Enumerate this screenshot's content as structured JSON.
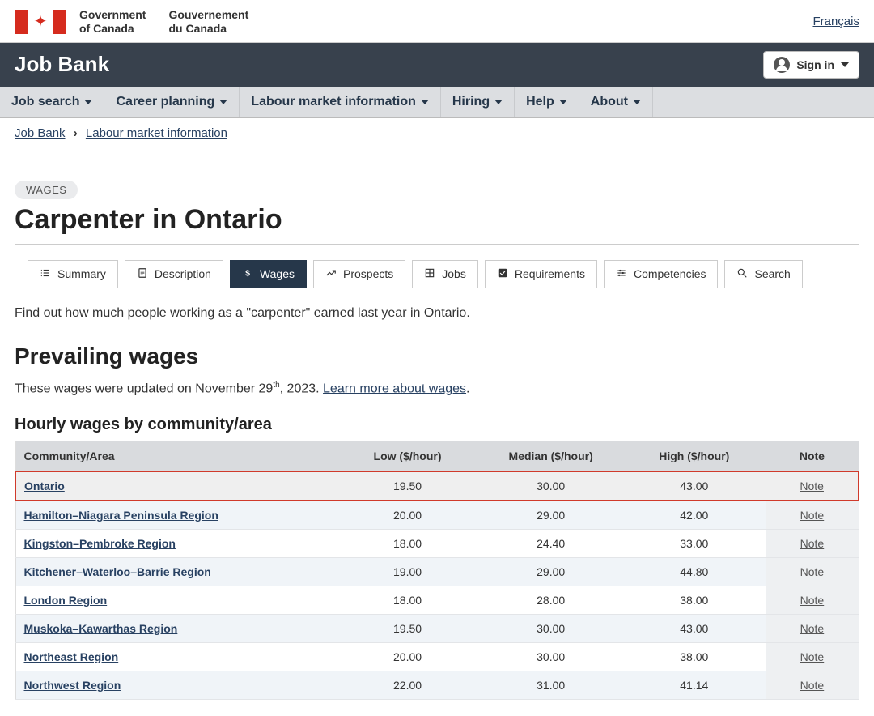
{
  "header": {
    "gov_en_line1": "Government",
    "gov_en_line2": "of Canada",
    "gov_fr_line1": "Gouvernement",
    "gov_fr_line2": "du Canada",
    "lang_link": "Français"
  },
  "appbar": {
    "title": "Job Bank",
    "signin": "Sign in"
  },
  "nav": {
    "items": [
      {
        "label": "Job search"
      },
      {
        "label": "Career planning"
      },
      {
        "label": "Labour market information"
      },
      {
        "label": "Hiring"
      },
      {
        "label": "Help"
      },
      {
        "label": "About"
      }
    ]
  },
  "breadcrumb": {
    "items": [
      "Job Bank",
      "Labour market information"
    ]
  },
  "page": {
    "badge": "WAGES",
    "title": "Carpenter in Ontario",
    "tabs": [
      {
        "label": "Summary",
        "icon": "list"
      },
      {
        "label": "Description",
        "icon": "doc"
      },
      {
        "label": "Wages",
        "icon": "dollar",
        "active": true
      },
      {
        "label": "Prospects",
        "icon": "chart"
      },
      {
        "label": "Jobs",
        "icon": "grid"
      },
      {
        "label": "Requirements",
        "icon": "check"
      },
      {
        "label": "Competencies",
        "icon": "sliders"
      },
      {
        "label": "Search",
        "icon": "search"
      }
    ],
    "intro": "Find out how much people working as a \"carpenter\" earned last year in Ontario.",
    "section_title": "Prevailing wages",
    "updated_prefix": "These wages were updated on November 29",
    "updated_suffix": ", 2023. ",
    "updated_sup": "th",
    "learn_more": "Learn more about wages",
    "subsection": "Hourly wages by community/area"
  },
  "table": {
    "columns": [
      "Community/Area",
      "Low ($/hour)",
      "Median ($/hour)",
      "High ($/hour)",
      "Note"
    ],
    "note_label": "Note",
    "rows": [
      {
        "area": "Ontario",
        "low": "19.50",
        "median": "30.00",
        "high": "43.00",
        "highlight": true
      },
      {
        "area": "Hamilton–Niagara Peninsula Region",
        "low": "20.00",
        "median": "29.00",
        "high": "42.00"
      },
      {
        "area": "Kingston–Pembroke Region",
        "low": "18.00",
        "median": "24.40",
        "high": "33.00"
      },
      {
        "area": "Kitchener–Waterloo–Barrie Region",
        "low": "19.00",
        "median": "29.00",
        "high": "44.80"
      },
      {
        "area": "London Region",
        "low": "18.00",
        "median": "28.00",
        "high": "38.00"
      },
      {
        "area": "Muskoka–Kawarthas Region",
        "low": "19.50",
        "median": "30.00",
        "high": "43.00"
      },
      {
        "area": "Northeast Region",
        "low": "20.00",
        "median": "30.00",
        "high": "38.00"
      },
      {
        "area": "Northwest Region",
        "low": "22.00",
        "median": "31.00",
        "high": "41.14"
      }
    ]
  }
}
